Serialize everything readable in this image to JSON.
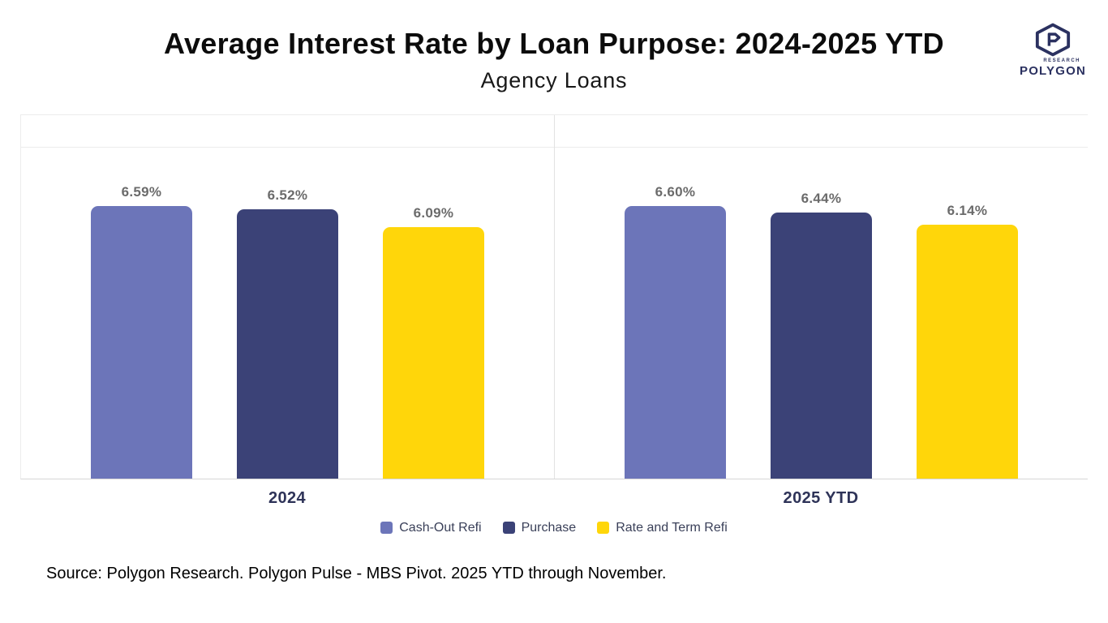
{
  "header": {
    "title": "Average Interest Rate by Loan Purpose: 2024-2025 YTD",
    "subtitle": "Agency Loans"
  },
  "logo": {
    "icon": "polygon-hexagon-logo",
    "research_label": "RESEARCH",
    "brand_label": "POLYGON",
    "color": "#2B3160"
  },
  "chart_data": {
    "type": "bar",
    "title": "Average Interest Rate by Loan Purpose: 2024-2025 YTD",
    "subtitle": "Agency Loans",
    "categories": [
      "2024",
      "2025 YTD"
    ],
    "series": [
      {
        "name": "Cash-Out Refi",
        "color": "#6C75B9",
        "values": [
          6.59,
          6.6
        ],
        "value_labels": [
          "6.59%",
          "6.60%"
        ]
      },
      {
        "name": "Purchase",
        "color": "#3B4277",
        "values": [
          6.52,
          6.44
        ],
        "value_labels": [
          "6.52%",
          "6.44%"
        ]
      },
      {
        "name": "Rate and Term Refi",
        "color": "#FFD60A",
        "values": [
          6.09,
          6.14
        ],
        "value_labels": [
          "6.09%",
          "6.14%"
        ]
      }
    ],
    "ylim": [
      0,
      8.8
    ],
    "gridline_values": [
      8
    ],
    "grid": "horizontal",
    "legend_position": "bottom",
    "value_label_color": "#6b6b6b",
    "xlabel": "",
    "ylabel": ""
  },
  "footer": {
    "source": "Source: Polygon Research. Polygon Pulse - MBS Pivot. 2025 YTD through November."
  }
}
